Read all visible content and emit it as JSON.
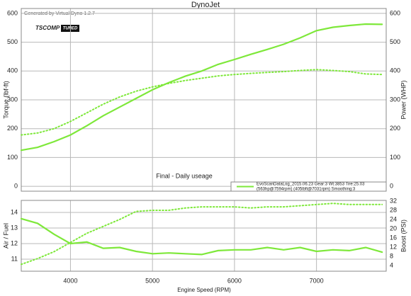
{
  "chart_data": [
    {
      "type": "line",
      "title": "DynoJet",
      "subtitle": "Generated by Virtual Dyno 1.2.7",
      "logo_text": "TSCOMP",
      "logo_badge": "TUNED",
      "annotation": "Final - Daily useage",
      "legend_text": [
        "EvoScanDataLog_2015.06.23 Gear:3 Wt:3853 Tire:25.03",
        "(563hp@7594rpm) (405lbft@7031rpm) Smoothing:3"
      ],
      "ylabel": "Torque (lbf-ft)",
      "y2label": "Power (WHP)",
      "x": [
        3400,
        3600,
        3800,
        4000,
        4200,
        4400,
        4600,
        4800,
        5000,
        5200,
        5400,
        5600,
        5800,
        6000,
        6200,
        6400,
        6600,
        6800,
        7000,
        7200,
        7400,
        7600,
        7800
      ],
      "xlim": [
        3400,
        7850
      ],
      "ylim": [
        -17,
        617
      ],
      "yticks": [
        0,
        100,
        200,
        300,
        400,
        500,
        600
      ],
      "y2lim": [
        -17,
        617
      ],
      "y2ticks": [
        0,
        100,
        200,
        300,
        400,
        500,
        600
      ],
      "grid": true,
      "series": [
        {
          "name": "Power",
          "color": "#7ee83a",
          "style": "solid",
          "axis": "y2",
          "values": [
            125,
            135,
            155,
            178,
            210,
            245,
            275,
            305,
            335,
            360,
            382,
            400,
            423,
            440,
            458,
            475,
            493,
            515,
            540,
            552,
            558,
            563,
            562
          ]
        },
        {
          "name": "Torque",
          "color": "#7ee83a",
          "style": "dotted",
          "values": [
            178,
            185,
            200,
            225,
            255,
            285,
            310,
            330,
            345,
            357,
            367,
            375,
            383,
            388,
            392,
            395,
            398,
            402,
            405,
            402,
            398,
            390,
            388
          ]
        }
      ]
    },
    {
      "type": "line",
      "xlabel": "Engine Speed (RPM)",
      "ylabel": "Air / Fuel",
      "y2label": "Boost (PSI)",
      "x": [
        3400,
        3600,
        3800,
        4000,
        4200,
        4400,
        4600,
        4800,
        5000,
        5200,
        5400,
        5600,
        5800,
        6000,
        6200,
        6400,
        6600,
        6800,
        7000,
        7200,
        7400,
        7600,
        7800
      ],
      "xlim": [
        3400,
        7850
      ],
      "xticks": [
        4000,
        5000,
        6000,
        7000
      ],
      "ylim": [
        10.23,
        14.77
      ],
      "yticks": [
        11,
        12,
        13,
        14
      ],
      "y2lim": [
        1.5,
        32.3
      ],
      "y2ticks": [
        4,
        8,
        12,
        16,
        20,
        24,
        28,
        32
      ],
      "grid": true,
      "series": [
        {
          "name": "Air / Fuel",
          "color": "#7ee83a",
          "style": "solid",
          "values": [
            13.6,
            13.3,
            12.6,
            12.0,
            12.1,
            11.7,
            11.75,
            11.5,
            11.35,
            11.4,
            11.35,
            11.3,
            11.55,
            11.6,
            11.6,
            11.75,
            11.6,
            11.75,
            11.5,
            11.6,
            11.55,
            11.75,
            11.45
          ]
        },
        {
          "name": "Boost",
          "color": "#7ee83a",
          "style": "dotted",
          "axis": "y2",
          "values": [
            4.5,
            7,
            10,
            14,
            18,
            21,
            24,
            27.5,
            28,
            28,
            29,
            29.5,
            29.5,
            29.5,
            29,
            29.5,
            29.5,
            30,
            30.5,
            31,
            30.5,
            30.5,
            30.5
          ]
        }
      ]
    }
  ]
}
